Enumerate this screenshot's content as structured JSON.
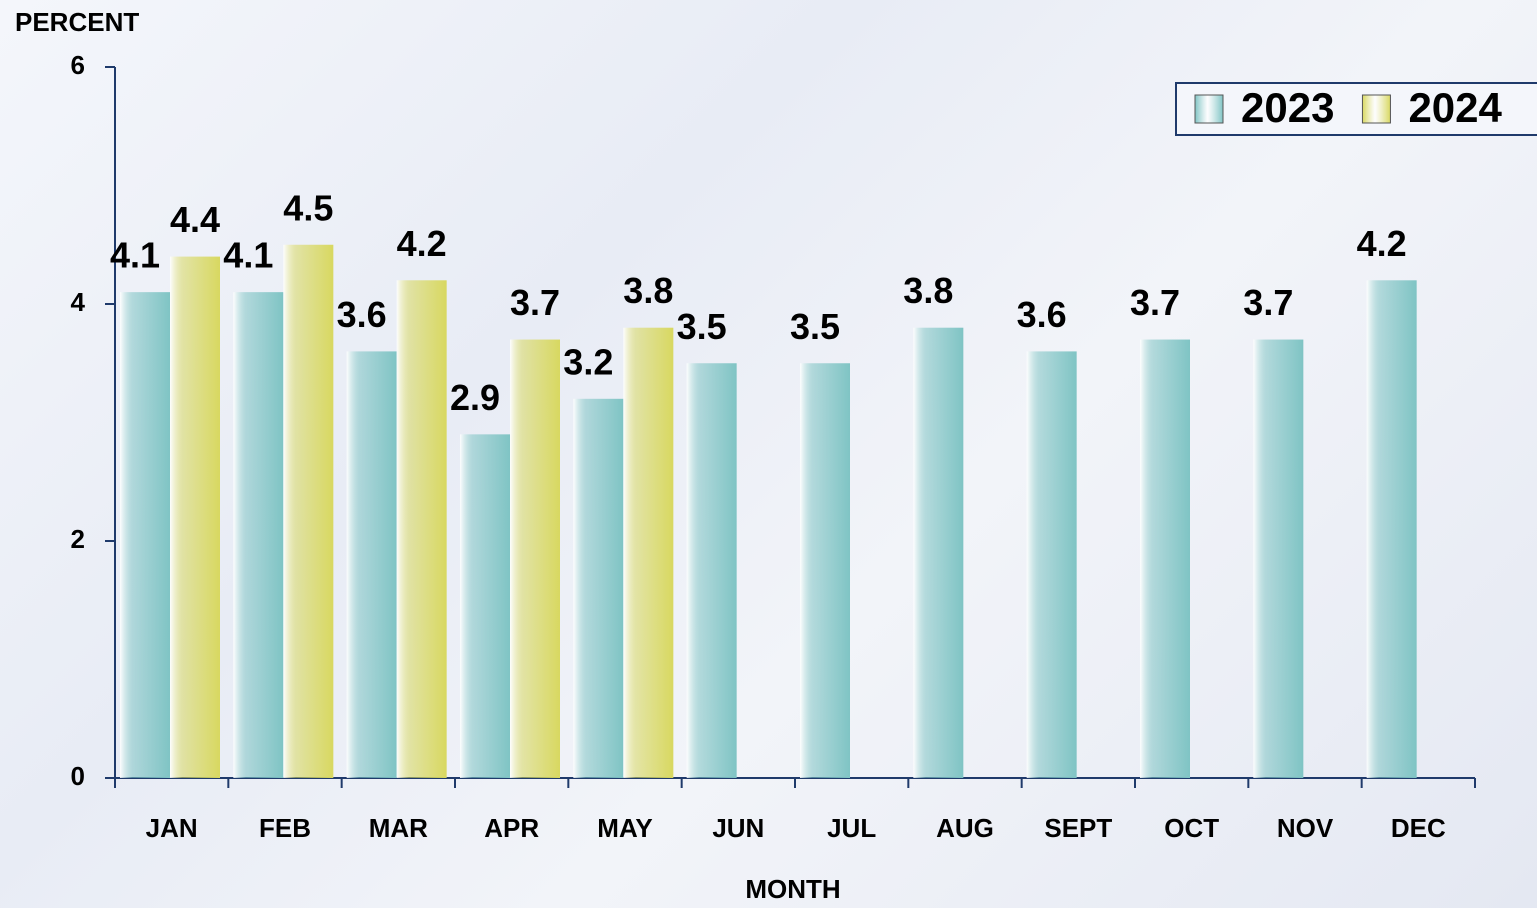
{
  "chart_data": {
    "type": "bar",
    "y_label": "PERCENT",
    "x_label": "MONTH",
    "categories": [
      "JAN",
      "FEB",
      "MAR",
      "APR",
      "MAY",
      "JUN",
      "JUL",
      "AUG",
      "SEPT",
      "OCT",
      "NOV",
      "DEC"
    ],
    "series": [
      {
        "name": "2023",
        "color": "#7fc4c4",
        "values": [
          4.1,
          4.1,
          3.6,
          2.9,
          3.2,
          3.5,
          3.5,
          3.8,
          3.6,
          3.7,
          3.7,
          4.2
        ]
      },
      {
        "name": "2024",
        "color": "#d8d860",
        "values": [
          4.4,
          4.5,
          4.2,
          3.7,
          3.8,
          null,
          null,
          null,
          null,
          null,
          null,
          null
        ]
      }
    ],
    "ylim": [
      0,
      6
    ],
    "yticks": [
      0,
      2,
      4,
      6
    ],
    "grid": false,
    "legend": "top-right"
  }
}
